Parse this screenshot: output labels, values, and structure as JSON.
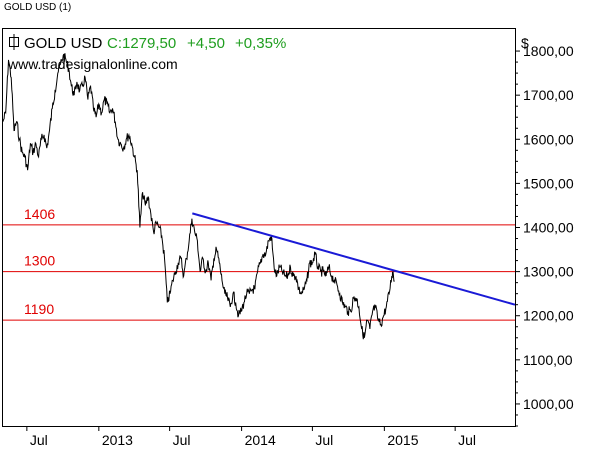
{
  "window_title": "GOLD USD (1)",
  "colors": {
    "price_line": "#000000",
    "horizontal_levels": "#e00000",
    "trendline": "#1a1ad6",
    "change_text": "#1f9e1f",
    "axis": "#000000"
  },
  "chart_data": {
    "type": "line",
    "symbol": "GOLD USD",
    "close_label": "C:1279,50",
    "change_abs": "+4,50",
    "change_pct": "+0,35%",
    "watermark": "www.tradesignalonline.com",
    "ylabel": "$",
    "ylim": [
      950,
      1850
    ],
    "x_range": [
      "2012-05-01",
      "2015-12-01"
    ],
    "grid": false,
    "y_tick_labels": [
      "1800,00",
      "1700,00",
      "1600,00",
      "1500,00",
      "1400,00",
      "1300,00",
      "1200,00",
      "1100,00",
      "1000,00"
    ],
    "y_ticks": [
      1800,
      1700,
      1600,
      1500,
      1400,
      1300,
      1200,
      1100,
      1000
    ],
    "x_tick_labels": [
      "Jul",
      "2013",
      "Jul",
      "2014",
      "Jul",
      "2015",
      "Jul"
    ],
    "x_ticks": [
      "2012-07-01",
      "2013-01-01",
      "2013-07-01",
      "2014-01-01",
      "2014-07-01",
      "2015-01-01",
      "2015-07-01"
    ],
    "horizontal_levels": [
      {
        "label": "1406",
        "value": 1406
      },
      {
        "label": "1300",
        "value": 1300
      },
      {
        "label": "1190",
        "value": 1190
      }
    ],
    "trendline": {
      "start": [
        "2013-08-28",
        1432
      ],
      "end": [
        "2015-12-01",
        1225
      ]
    },
    "series": [
      {
        "points": [
          [
            "2012-05-01",
            1640
          ],
          [
            "2012-05-08",
            1660
          ],
          [
            "2012-05-15",
            1780
          ],
          [
            "2012-05-22",
            1740
          ],
          [
            "2012-05-29",
            1620
          ],
          [
            "2012-06-05",
            1640
          ],
          [
            "2012-06-12",
            1600
          ],
          [
            "2012-06-19",
            1570
          ],
          [
            "2012-06-26",
            1560
          ],
          [
            "2012-07-03",
            1530
          ],
          [
            "2012-07-10",
            1590
          ],
          [
            "2012-07-17",
            1570
          ],
          [
            "2012-07-24",
            1590
          ],
          [
            "2012-07-31",
            1560
          ],
          [
            "2012-08-07",
            1600
          ],
          [
            "2012-08-14",
            1610
          ],
          [
            "2012-08-21",
            1580
          ],
          [
            "2012-08-28",
            1620
          ],
          [
            "2012-09-04",
            1670
          ],
          [
            "2012-09-11",
            1710
          ],
          [
            "2012-09-18",
            1750
          ],
          [
            "2012-09-25",
            1770
          ],
          [
            "2012-10-02",
            1790
          ],
          [
            "2012-10-09",
            1780
          ],
          [
            "2012-10-16",
            1760
          ],
          [
            "2012-10-23",
            1720
          ],
          [
            "2012-10-30",
            1700
          ],
          [
            "2012-11-06",
            1730
          ],
          [
            "2012-11-13",
            1710
          ],
          [
            "2012-11-20",
            1720
          ],
          [
            "2012-11-27",
            1740
          ],
          [
            "2012-12-04",
            1690
          ],
          [
            "2012-12-11",
            1720
          ],
          [
            "2012-12-18",
            1670
          ],
          [
            "2012-12-25",
            1650
          ],
          [
            "2013-01-01",
            1680
          ],
          [
            "2013-01-08",
            1660
          ],
          [
            "2013-01-15",
            1690
          ],
          [
            "2013-01-22",
            1680
          ],
          [
            "2013-01-29",
            1660
          ],
          [
            "2013-02-05",
            1670
          ],
          [
            "2013-02-12",
            1640
          ],
          [
            "2013-02-19",
            1600
          ],
          [
            "2013-02-26",
            1590
          ],
          [
            "2013-03-05",
            1580
          ],
          [
            "2013-03-12",
            1600
          ],
          [
            "2013-03-19",
            1610
          ],
          [
            "2013-03-26",
            1590
          ],
          [
            "2013-04-02",
            1560
          ],
          [
            "2013-04-09",
            1530
          ],
          [
            "2013-04-16",
            1400
          ],
          [
            "2013-04-23",
            1480
          ],
          [
            "2013-04-30",
            1450
          ],
          [
            "2013-05-07",
            1470
          ],
          [
            "2013-05-14",
            1430
          ],
          [
            "2013-05-21",
            1390
          ],
          [
            "2013-05-28",
            1410
          ],
          [
            "2013-06-04",
            1400
          ],
          [
            "2013-06-11",
            1380
          ],
          [
            "2013-06-18",
            1330
          ],
          [
            "2013-06-25",
            1230
          ],
          [
            "2013-07-02",
            1250
          ],
          [
            "2013-07-09",
            1280
          ],
          [
            "2013-07-16",
            1300
          ],
          [
            "2013-07-23",
            1320
          ],
          [
            "2013-07-30",
            1330
          ],
          [
            "2013-08-06",
            1290
          ],
          [
            "2013-08-13",
            1330
          ],
          [
            "2013-08-20",
            1370
          ],
          [
            "2013-08-27",
            1420
          ],
          [
            "2013-09-03",
            1390
          ],
          [
            "2013-09-10",
            1370
          ],
          [
            "2013-09-17",
            1300
          ],
          [
            "2013-09-24",
            1330
          ],
          [
            "2013-10-01",
            1300
          ],
          [
            "2013-10-08",
            1320
          ],
          [
            "2013-10-15",
            1280
          ],
          [
            "2013-10-22",
            1330
          ],
          [
            "2013-10-29",
            1350
          ],
          [
            "2013-11-05",
            1320
          ],
          [
            "2013-11-12",
            1280
          ],
          [
            "2013-11-19",
            1250
          ],
          [
            "2013-11-26",
            1240
          ],
          [
            "2013-12-03",
            1220
          ],
          [
            "2013-12-10",
            1250
          ],
          [
            "2013-12-17",
            1230
          ],
          [
            "2013-12-24",
            1200
          ],
          [
            "2013-12-31",
            1210
          ],
          [
            "2014-01-07",
            1230
          ],
          [
            "2014-01-14",
            1250
          ],
          [
            "2014-01-21",
            1250
          ],
          [
            "2014-01-28",
            1260
          ],
          [
            "2014-02-04",
            1260
          ],
          [
            "2014-02-11",
            1300
          ],
          [
            "2014-02-18",
            1320
          ],
          [
            "2014-02-25",
            1340
          ],
          [
            "2014-03-04",
            1340
          ],
          [
            "2014-03-11",
            1370
          ],
          [
            "2014-03-18",
            1380
          ],
          [
            "2014-03-25",
            1310
          ],
          [
            "2014-04-01",
            1290
          ],
          [
            "2014-04-08",
            1310
          ],
          [
            "2014-04-15",
            1300
          ],
          [
            "2014-04-22",
            1290
          ],
          [
            "2014-04-29",
            1290
          ],
          [
            "2014-05-06",
            1310
          ],
          [
            "2014-05-13",
            1290
          ],
          [
            "2014-05-20",
            1290
          ],
          [
            "2014-05-27",
            1260
          ],
          [
            "2014-06-03",
            1250
          ],
          [
            "2014-06-10",
            1260
          ],
          [
            "2014-06-17",
            1280
          ],
          [
            "2014-06-24",
            1320
          ],
          [
            "2014-07-01",
            1320
          ],
          [
            "2014-07-08",
            1340
          ],
          [
            "2014-07-15",
            1310
          ],
          [
            "2014-07-22",
            1300
          ],
          [
            "2014-07-29",
            1300
          ],
          [
            "2014-08-05",
            1290
          ],
          [
            "2014-08-12",
            1310
          ],
          [
            "2014-08-19",
            1290
          ],
          [
            "2014-08-26",
            1280
          ],
          [
            "2014-09-02",
            1270
          ],
          [
            "2014-09-09",
            1250
          ],
          [
            "2014-09-16",
            1230
          ],
          [
            "2014-09-23",
            1220
          ],
          [
            "2014-09-30",
            1210
          ],
          [
            "2014-10-07",
            1210
          ],
          [
            "2014-10-14",
            1240
          ],
          [
            "2014-10-21",
            1240
          ],
          [
            "2014-10-28",
            1220
          ],
          [
            "2014-11-04",
            1170
          ],
          [
            "2014-11-11",
            1150
          ],
          [
            "2014-11-18",
            1190
          ],
          [
            "2014-11-25",
            1170
          ],
          [
            "2014-12-02",
            1210
          ],
          [
            "2014-12-09",
            1220
          ],
          [
            "2014-12-16",
            1190
          ],
          [
            "2014-12-23",
            1180
          ],
          [
            "2014-12-30",
            1200
          ],
          [
            "2015-01-06",
            1220
          ],
          [
            "2015-01-13",
            1250
          ],
          [
            "2015-01-20",
            1290
          ],
          [
            "2015-01-23",
            1300
          ],
          [
            "2015-01-27",
            1279.5
          ]
        ]
      }
    ]
  }
}
